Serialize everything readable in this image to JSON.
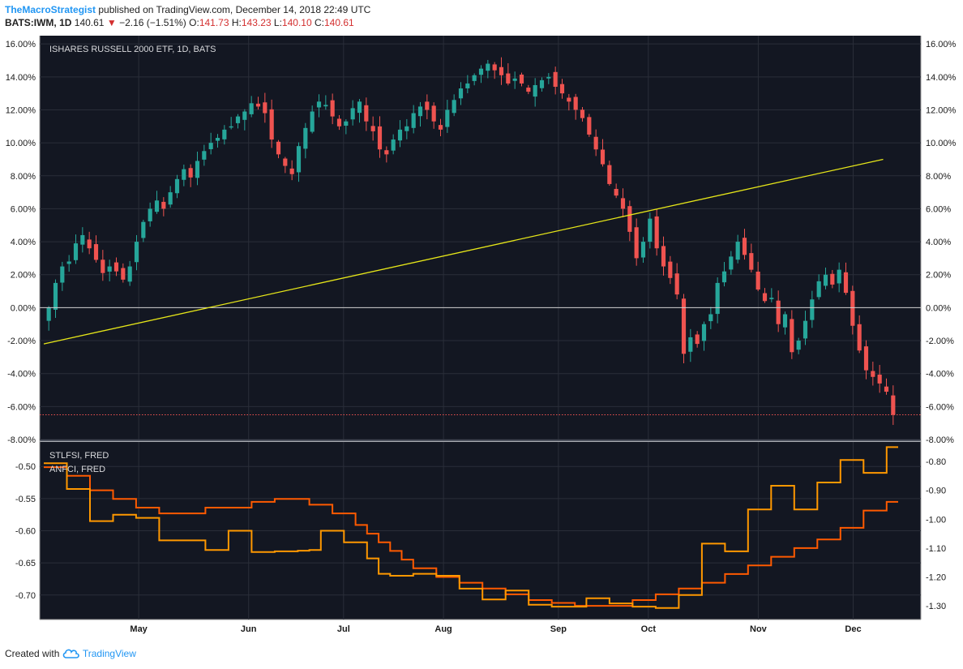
{
  "header": {
    "author": "TheMacroStrategist",
    "published": "published on TradingView.com, December 14, 2018 22:49 UTC",
    "symbol": "BATS:IWM, 1D",
    "last": "140.61",
    "change": "−2.16 (−1.51%)",
    "o_label": "O:",
    "o_value": "141.73",
    "h_label": "H:",
    "h_value": "143.23",
    "l_label": "L:",
    "l_value": "140.10",
    "c_label": "C:",
    "c_value": "140.61"
  },
  "footer": {
    "created_with": "Created with",
    "brand": "TradingView"
  },
  "colors": {
    "background": "#131722",
    "up": "#26a69a",
    "down": "#ef5350",
    "trendline": "#e6e619",
    "stlfsi": "#ff5a00",
    "anfci": "#ff9800",
    "grid": "#2a2e39"
  },
  "chart_data": [
    {
      "type": "candlestick",
      "title": "ISHARES RUSSELL 2000 ETF, 1D, BATS",
      "y_unit": "% change",
      "ylim": [
        -8,
        16.5
      ],
      "y_ticks": [
        "16.00%",
        "14.00%",
        "12.00%",
        "10.00%",
        "8.00%",
        "6.00%",
        "4.00%",
        "2.00%",
        "0.00%",
        "-2.00%",
        "-4.00%",
        "-6.00%",
        "-8.00%"
      ],
      "x_ticks": [
        "May",
        "Jun",
        "Jul",
        "Aug",
        "Sep",
        "Oct",
        "Nov",
        "Dec"
      ],
      "x_tick_days": [
        19,
        41,
        60,
        80,
        103,
        121,
        143,
        162
      ],
      "x_range": [
        0,
        171
      ],
      "zero_line": 0,
      "last_price_line": -6.5,
      "trendline": {
        "from": [
          0,
          -2.2
        ],
        "to": [
          168,
          9.0
        ]
      },
      "close_pct": [
        0.0,
        1.5,
        2.5,
        2.8,
        3.9,
        4.4,
        3.6,
        2.9,
        2.1,
        2.5,
        2.2,
        1.7,
        2.5,
        4.0,
        5.2,
        6.0,
        6.5,
        6.0,
        7.0,
        7.8,
        8.4,
        7.9,
        8.9,
        9.5,
        10.0,
        10.3,
        10.8,
        11.0,
        11.6,
        11.9,
        12.4,
        12.2,
        11.8,
        10.2,
        9.3,
        8.6,
        8.1,
        9.8,
        10.9,
        11.9,
        12.5,
        12.3,
        11.6,
        11.0,
        11.3,
        12.1,
        12.5,
        11.3,
        10.7,
        9.6,
        9.3,
        10.2,
        10.8,
        11.0,
        11.8,
        12.2,
        12.0,
        11.3,
        10.8,
        12.0,
        12.6,
        13.3,
        13.6,
        14.1,
        14.5,
        14.8,
        14.4,
        14.1,
        13.6,
        13.9,
        13.6,
        13.1,
        13.5,
        13.8,
        14.0,
        13.4,
        13.0,
        12.5,
        12.0,
        11.5,
        10.5,
        9.6,
        8.7,
        7.5,
        6.8,
        6.0,
        4.6,
        3.0,
        4.0,
        5.4,
        3.6,
        2.5,
        1.8,
        0.8,
        -2.8,
        -1.8,
        -2.2,
        -1.0,
        -0.4,
        1.5,
        2.2,
        3.1,
        4.0,
        3.2,
        2.3,
        1.1,
        0.4,
        0.6,
        -1.0,
        -0.4,
        -2.7,
        -2.0,
        -0.8,
        0.5,
        1.6,
        2.0,
        1.4,
        2.3,
        0.9,
        -1.1,
        -2.6,
        -3.8,
        -4.2,
        -4.6,
        -5.1,
        -6.5
      ],
      "volatility_pct": 0.6
    },
    {
      "type": "line",
      "series": [
        {
          "name": "STLFSI, FRED",
          "axis": "right",
          "values": [
            -0.82,
            -0.82,
            -0.85,
            -0.85,
            -0.9,
            -0.9,
            -0.93,
            -0.93,
            -0.96,
            -0.96,
            -0.98,
            -0.98,
            -0.98,
            -0.98,
            -0.96,
            -0.96,
            -0.96,
            -0.96,
            -0.94,
            -0.94,
            -0.93,
            -0.93,
            -0.93,
            -0.95,
            -0.95,
            -0.98,
            -0.98,
            -1.02,
            -1.05,
            -1.08,
            -1.11,
            -1.14,
            -1.17,
            -1.17,
            -1.2,
            -1.2,
            -1.22,
            -1.22,
            -1.24,
            -1.24,
            -1.26,
            -1.26,
            -1.28,
            -1.28,
            -1.29,
            -1.29,
            -1.3,
            -1.3,
            -1.3,
            -1.3,
            -1.3,
            -1.28,
            -1.28,
            -1.26,
            -1.26,
            -1.24,
            -1.24,
            -1.22,
            -1.22,
            -1.19,
            -1.19,
            -1.16,
            -1.16,
            -1.13,
            -1.13,
            -1.1,
            -1.1,
            -1.07,
            -1.07,
            -1.03,
            -1.03,
            -0.97,
            -0.97,
            -0.94,
            -0.94
          ],
          "ylim": [
            -1.325,
            -0.755
          ],
          "y_ticks": [
            "-0.80",
            "-0.90",
            "-1.00",
            "-1.10",
            "-1.20",
            "-1.30"
          ]
        },
        {
          "name": "ANFCI, FRED",
          "axis": "left",
          "values": [
            -0.495,
            -0.495,
            -0.535,
            -0.535,
            -0.585,
            -0.585,
            -0.575,
            -0.575,
            -0.58,
            -0.58,
            -0.615,
            -0.615,
            -0.615,
            -0.615,
            -0.63,
            -0.63,
            -0.6,
            -0.6,
            -0.633,
            -0.633,
            -0.632,
            -0.632,
            -0.631,
            -0.63,
            -0.6,
            -0.6,
            -0.618,
            -0.618,
            -0.643,
            -0.667,
            -0.67,
            -0.67,
            -0.667,
            -0.667,
            -0.67,
            -0.67,
            -0.69,
            -0.69,
            -0.707,
            -0.707,
            -0.693,
            -0.693,
            -0.715,
            -0.715,
            -0.718,
            -0.718,
            -0.718,
            -0.705,
            -0.705,
            -0.713,
            -0.713,
            -0.718,
            -0.718,
            -0.72,
            -0.72,
            -0.7,
            -0.7,
            -0.62,
            -0.62,
            -0.632,
            -0.632,
            -0.567,
            -0.567,
            -0.53,
            -0.53,
            -0.567,
            -0.567,
            -0.525,
            -0.525,
            -0.49,
            -0.49,
            -0.51,
            -0.51,
            -0.47,
            -0.47
          ],
          "ylim": [
            -0.728,
            -0.472
          ],
          "y_ticks": [
            "-0.50",
            "-0.55",
            "-0.60",
            "-0.65",
            "-0.70"
          ]
        }
      ]
    }
  ]
}
